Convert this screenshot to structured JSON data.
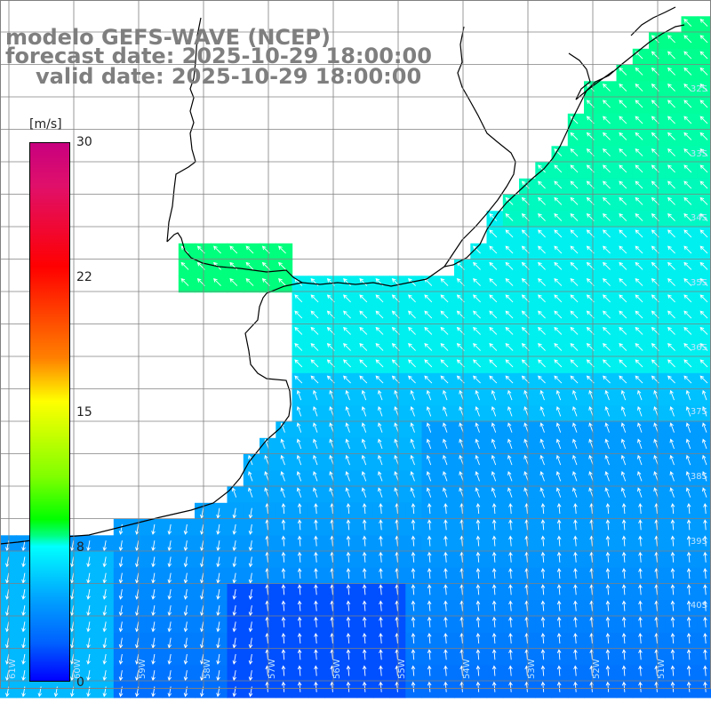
{
  "titles": {
    "line1": "modelo GEFS-WAVE (NCEP)",
    "line2": "forecast date: 2025-10-29 18:00:00",
    "line3": "valid date: 2025-10-29 18:00:00"
  },
  "colorbar": {
    "unit": "[m/s]",
    "ticks": [
      "30",
      "22",
      "15",
      "8",
      "0"
    ],
    "tick_values": [
      30,
      22,
      15,
      8,
      0
    ],
    "range": [
      0,
      30
    ],
    "colors": [
      "#0000ff",
      "#00a0ff",
      "#00ffff",
      "#00ff80",
      "#00ff00",
      "#ffff00",
      "#ff8000",
      "#ff0000",
      "#c8007f"
    ]
  },
  "lat_labels": [
    "32S",
    "33S",
    "34S",
    "35S",
    "36S",
    "37S",
    "38S",
    "39S",
    "40S"
  ],
  "lon_labels": [
    "61W",
    "60W",
    "59W",
    "58W",
    "57W",
    "56W",
    "55W",
    "54W",
    "53W",
    "52W",
    "51W"
  ],
  "colors": {
    "land": "#ffffff",
    "grid": "#808080",
    "coast": "#000000",
    "arrows": "#ffffff",
    "title": "#7f7f7f"
  }
}
